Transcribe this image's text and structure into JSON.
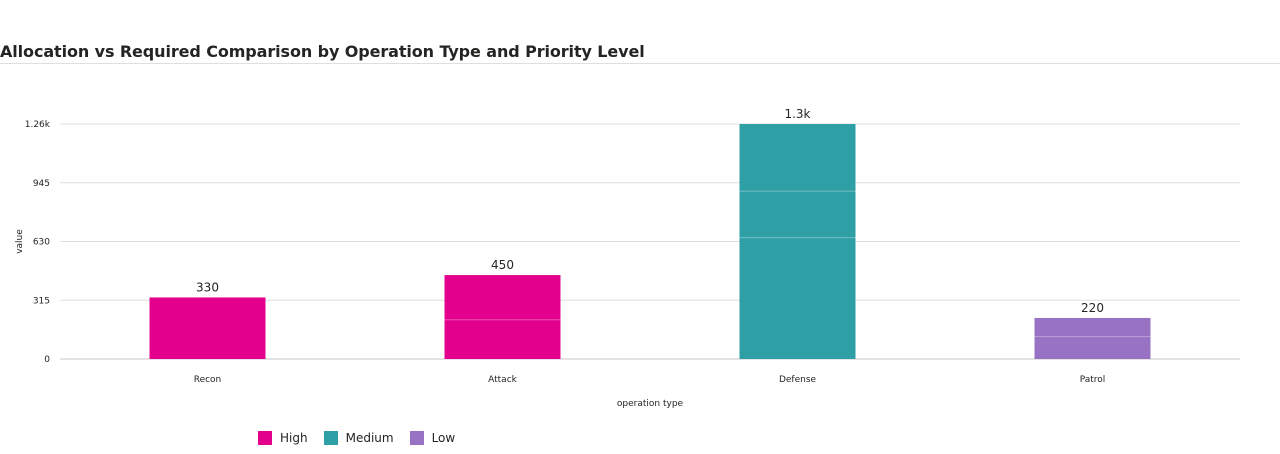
{
  "title": "Allocation vs Required Comparison by Operation Type and Priority Level",
  "colors": {
    "High": "#e3008c",
    "Medium": "#2d9fa5",
    "Low": "#9873c3",
    "grid": "#dedede",
    "text": "#252423"
  },
  "legend": [
    {
      "name": "High",
      "color": "#e3008c"
    },
    {
      "name": "Medium",
      "color": "#2d9fa5"
    },
    {
      "name": "Low",
      "color": "#9873c3"
    }
  ],
  "chart_data": {
    "type": "bar",
    "title": "Allocation vs Required Comparison by Operation Type and Priority Level",
    "xlabel": "operation type",
    "ylabel": "value",
    "categories": [
      "Recon",
      "Attack",
      "Defense",
      "Patrol"
    ],
    "ylim": [
      0,
      1260
    ],
    "yticks": [
      0,
      315,
      630,
      945,
      1260
    ],
    "ytick_labels": [
      "0",
      "315",
      "630",
      "945",
      "1.26k"
    ],
    "grid": true,
    "legend_position": "bottom-left",
    "bars": [
      {
        "category": "Recon",
        "priority": "High",
        "segments": [
          330
        ],
        "total": 330,
        "label": "330"
      },
      {
        "category": "Attack",
        "priority": "High",
        "segments": [
          210,
          240
        ],
        "total": 450,
        "label": "450"
      },
      {
        "category": "Defense",
        "priority": "Medium",
        "segments": [
          650,
          250,
          360
        ],
        "total": 1260,
        "label": "1.3k"
      },
      {
        "category": "Patrol",
        "priority": "Low",
        "segments": [
          120,
          100
        ],
        "total": 220,
        "label": "220"
      }
    ]
  }
}
